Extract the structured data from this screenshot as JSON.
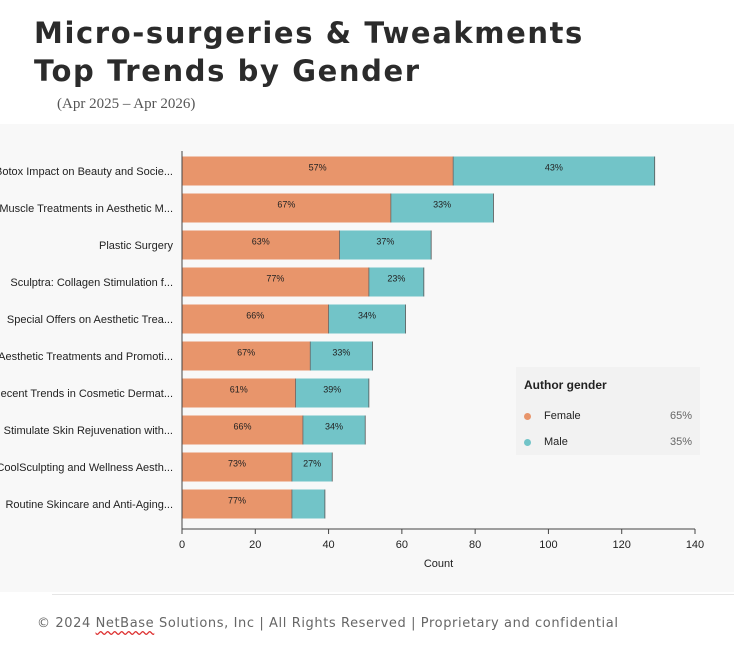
{
  "header": {
    "title_line1": "Micro-surgeries & Tweakments",
    "title_line2": "Top Trends by Gender",
    "subtitle": "(Apr 2025 – Apr 2026)"
  },
  "legend": {
    "title": "Author gender",
    "items": [
      {
        "name": "Female",
        "share": "65%",
        "color": "#e8956b"
      },
      {
        "name": "Male",
        "share": "35%",
        "color": "#72c4c8"
      }
    ]
  },
  "footer": {
    "prefix": "© 2024 ",
    "brand": "NetBase",
    "suffix": " Solutions, Inc | All Rights Reserved | Proprietary and confidential"
  },
  "chart_data": {
    "type": "bar",
    "orientation": "horizontal",
    "stacked": true,
    "categories": [
      "Botox Impact on Beauty and Socie...",
      "Muscle Treatments in Aesthetic M...",
      "Plastic Surgery",
      "Sculptra: Collagen Stimulation f...",
      "Special Offers on Aesthetic Trea...",
      "Aesthetic Treatments and Promoti...",
      "Recent Trends in Cosmetic Dermat...",
      "Stimulate Skin Rejuvenation with...",
      "CoolSculpting and Wellness Aesth...",
      "Routine Skincare and Anti-Aging..."
    ],
    "series": [
      {
        "name": "Female",
        "color": "#e8956b",
        "values": [
          74,
          57,
          43,
          51,
          40,
          35,
          31,
          33,
          30,
          30
        ],
        "labels": [
          "57%",
          "67%",
          "63%",
          "77%",
          "66%",
          "67%",
          "61%",
          "66%",
          "73%",
          "77%"
        ]
      },
      {
        "name": "Male",
        "color": "#72c4c8",
        "values": [
          55,
          28,
          25,
          15,
          21,
          17,
          20,
          17,
          11,
          9
        ],
        "labels": [
          "43%",
          "33%",
          "37%",
          "23%",
          "34%",
          "33%",
          "39%",
          "34%",
          "27%",
          ""
        ]
      }
    ],
    "xlabel": "Count",
    "ylabel": "",
    "xlim": [
      0,
      140
    ],
    "xticks": [
      0,
      20,
      40,
      60,
      80,
      100,
      120,
      140
    ],
    "grid": false,
    "legend_position": "right"
  }
}
